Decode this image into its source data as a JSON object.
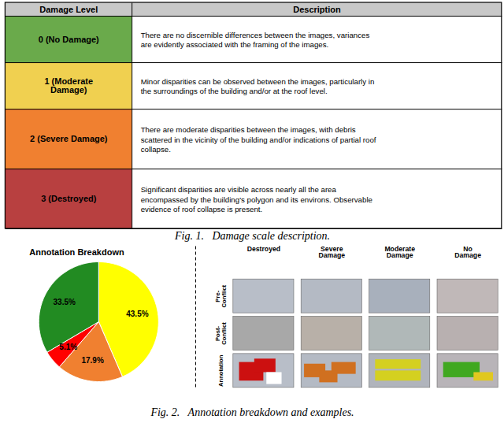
{
  "chart_data": [
    {
      "type": "table",
      "columns": [
        "Damage Level",
        "Description"
      ],
      "header_color": "#c8c8c8",
      "rows": [
        {
          "level": "0 (No Damage)",
          "color": "#6aaa4b",
          "description": "There are no discernible differences between the images, variances\nare evidently associated with the framing of the images."
        },
        {
          "level": "1 (Moderate\nDamage)",
          "color": "#f0d050",
          "description": "Minor disparities can be observed between the images, particularly in\nthe surroundings of the building and/or at the roof level."
        },
        {
          "level": "2 (Severe Damage)",
          "color": "#f08030",
          "description": "There are moderate disparities between the images, with debris\nscattered in the vicinity of the building and/or indications of partial roof\ncollapse."
        },
        {
          "level": "3 (Destroyed)",
          "color": "#b84040",
          "description": "Significant disparities are visible across nearly all the area\nencompassed by the building's polygon and its environs. Observable\nevidence of roof collapse is present."
        }
      ],
      "caption": "Fig. 1.   Damage scale description."
    },
    {
      "type": "pie",
      "title": "Annotation Breakdown",
      "values": [
        43.5,
        17.9,
        5.1,
        33.5
      ],
      "value_labels": [
        "43.5%",
        "17.9%",
        "5.1%",
        "33.5%"
      ],
      "colors": [
        "#ffff00",
        "#f08030",
        "#ff0000",
        "#228b22"
      ],
      "data_labels": true
    },
    {
      "type": "image_grid",
      "columns": [
        "Destroyed",
        "Severe\nDamage",
        "Moderate\nDamage",
        "No\nDamage"
      ],
      "rows": [
        "Pre-\nConflict",
        "Post-\nConflict",
        "Annotation"
      ],
      "cells": [
        [
          {
            "color": "#b8bec8"
          },
          {
            "color": "#b4bac4"
          },
          {
            "color": "#a8b0bc"
          },
          {
            "color": "#c0b8b8"
          }
        ],
        [
          {
            "color": "#a8a8a8"
          },
          {
            "color": "#b8b0a8"
          },
          {
            "color": "#b0b8b8"
          },
          {
            "color": "#b8b0b0"
          }
        ],
        [
          {
            "color": "#b8bec8",
            "overlay": [
              "#cc1010",
              "#cc1010",
              "#ffffff"
            ]
          },
          {
            "color": "#b4bac4",
            "overlay": [
              "#d07020",
              "#d07020",
              "#d07020"
            ]
          },
          {
            "color": "#b0b4bc",
            "overlay": [
              "#d4d020",
              "#d4d020"
            ]
          },
          {
            "color": "#b8b4b8",
            "overlay": [
              "#40a820",
              "#e0c820"
            ]
          }
        ]
      ],
      "caption": "Fig. 2.   Annotation breakdown and examples."
    }
  ]
}
